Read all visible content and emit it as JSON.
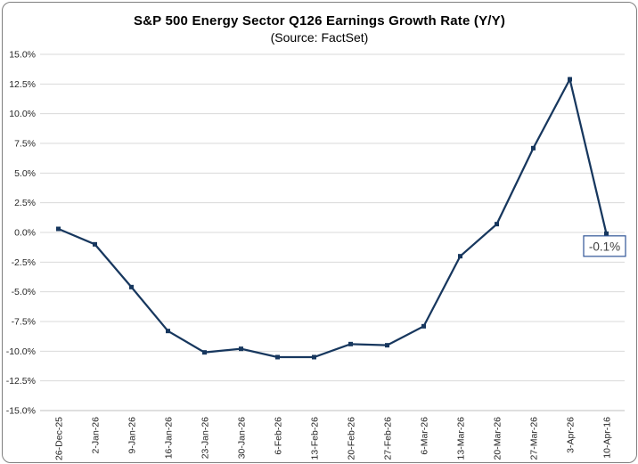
{
  "chart_data": {
    "type": "line",
    "title": "S&P 500 Energy Sector Q126 Earnings Growth Rate (Y/Y)",
    "subtitle": "(Source: FactSet)",
    "categories": [
      "26-Dec-25",
      "2-Jan-26",
      "9-Jan-26",
      "16-Jan-26",
      "23-Jan-26",
      "30-Jan-26",
      "6-Feb-26",
      "13-Feb-26",
      "20-Feb-26",
      "27-Feb-26",
      "6-Mar-26",
      "13-Mar-26",
      "20-Mar-26",
      "27-Mar-26",
      "3-Apr-26",
      "10-Apr-16"
    ],
    "values": [
      0.3,
      -1.0,
      -4.6,
      -8.3,
      -10.1,
      -9.8,
      -10.5,
      -10.5,
      -9.4,
      -9.5,
      -7.9,
      -2.0,
      0.7,
      7.1,
      12.9,
      -0.1
    ],
    "ylim": [
      -15,
      15
    ],
    "ytick_step": 2.5,
    "ytick_labels": [
      "15.0%",
      "12.5%",
      "10.0%",
      "7.5%",
      "5.0%",
      "2.5%",
      "0.0%",
      "-2.5%",
      "-5.0%",
      "-7.5%",
      "-10.0%",
      "-12.5%",
      "-15.0%"
    ],
    "grid": true,
    "legend": "none",
    "annotation": {
      "text": "-0.1%",
      "point_index": 15
    },
    "colors": {
      "line": "#17375E",
      "marker": "#17375E",
      "gridline": "#D9D9D9",
      "axis_line": "#BFBFBF",
      "tick_text": "#262626",
      "annotation_border": "#2F5496",
      "annotation_text": "#404040",
      "frame_border": "#7F7F7F"
    }
  }
}
